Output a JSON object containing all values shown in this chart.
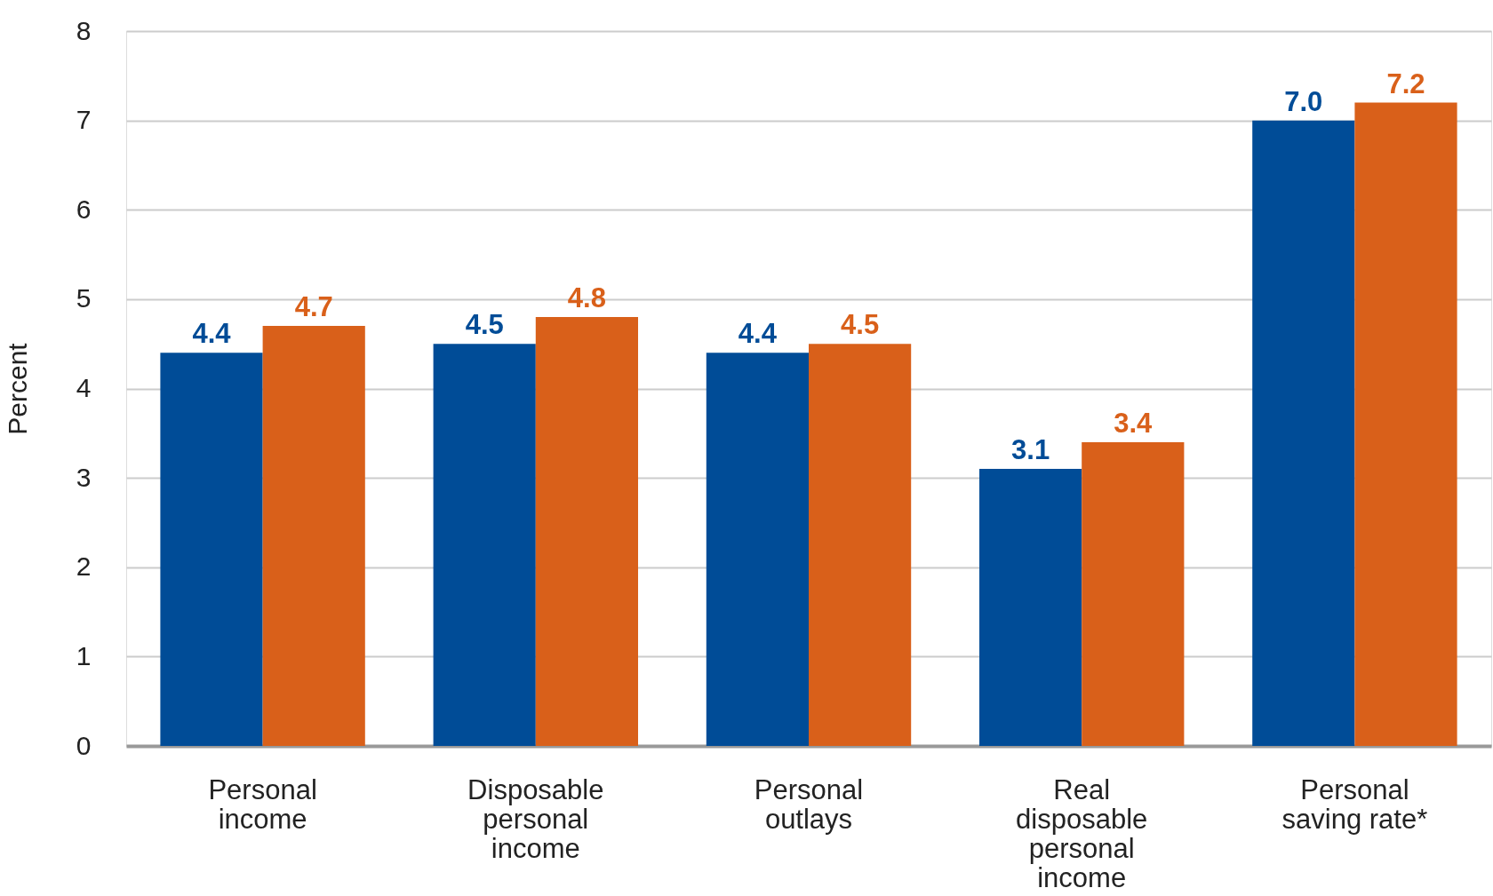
{
  "chart_data": {
    "type": "bar",
    "ylabel": "Percent",
    "categories": [
      "Personal income",
      "Disposable personal income",
      "Personal outlays",
      "Real disposable personal income",
      "Personal saving rate*"
    ],
    "series": [
      {
        "color": "#004c97",
        "values": [
          4.4,
          4.5,
          4.4,
          3.1,
          7.0
        ],
        "value_labels": [
          "4.4",
          "4.5",
          "4.4",
          "3.1",
          "7.0"
        ]
      },
      {
        "color": "#d9601a",
        "values": [
          4.7,
          4.8,
          4.5,
          3.4,
          7.2
        ],
        "value_labels": [
          "4.7",
          "4.8",
          "4.5",
          "3.4",
          "7.2"
        ]
      }
    ],
    "ylim": [
      0,
      8
    ],
    "yticks": [
      0,
      1,
      2,
      3,
      4,
      5,
      6,
      7,
      8
    ],
    "grid": "y"
  }
}
